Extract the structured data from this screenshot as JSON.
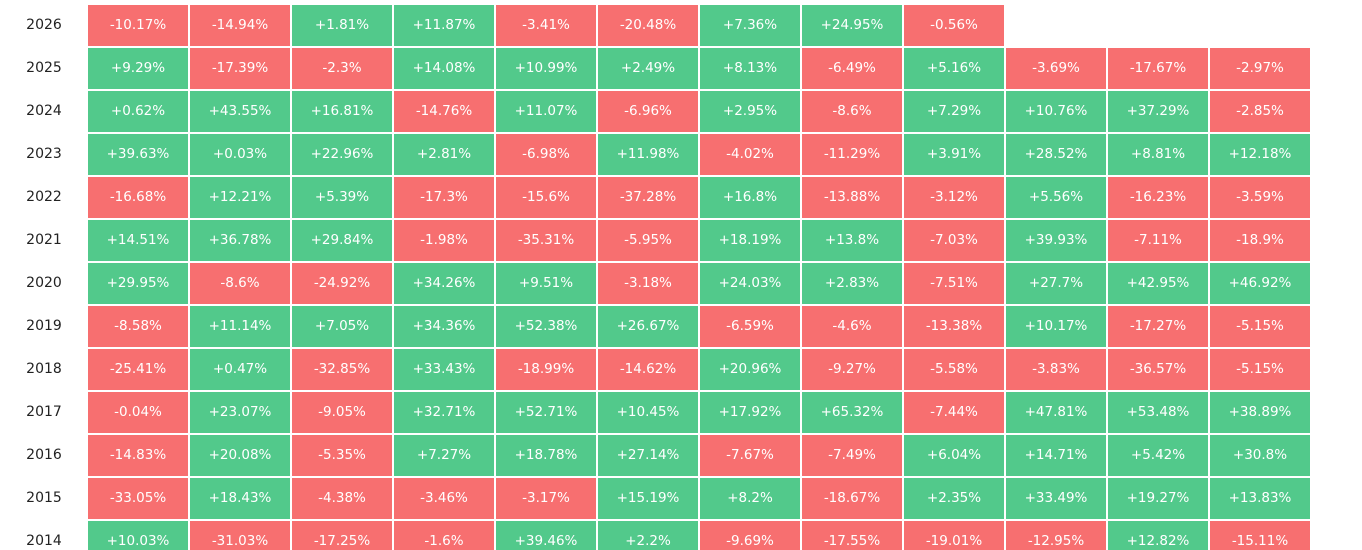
{
  "table": {
    "rows": [
      {
        "year": "2026",
        "cells": [
          "-10.17%",
          "-14.94%",
          "+1.81%",
          "+11.87%",
          "-3.41%",
          "-20.48%",
          "+7.36%",
          "+24.95%",
          "-0.56%"
        ]
      },
      {
        "year": "2025",
        "cells": [
          "+9.29%",
          "-17.39%",
          "-2.3%",
          "+14.08%",
          "+10.99%",
          "+2.49%",
          "+8.13%",
          "-6.49%",
          "+5.16%",
          "-3.69%",
          "-17.67%",
          "-2.97%"
        ]
      },
      {
        "year": "2024",
        "cells": [
          "+0.62%",
          "+43.55%",
          "+16.81%",
          "-14.76%",
          "+11.07%",
          "-6.96%",
          "+2.95%",
          "-8.6%",
          "+7.29%",
          "+10.76%",
          "+37.29%",
          "-2.85%"
        ]
      },
      {
        "year": "2023",
        "cells": [
          "+39.63%",
          "+0.03%",
          "+22.96%",
          "+2.81%",
          "-6.98%",
          "+11.98%",
          "-4.02%",
          "-11.29%",
          "+3.91%",
          "+28.52%",
          "+8.81%",
          "+12.18%"
        ]
      },
      {
        "year": "2022",
        "cells": [
          "-16.68%",
          "+12.21%",
          "+5.39%",
          "-17.3%",
          "-15.6%",
          "-37.28%",
          "+16.8%",
          "-13.88%",
          "-3.12%",
          "+5.56%",
          "-16.23%",
          "-3.59%"
        ]
      },
      {
        "year": "2021",
        "cells": [
          "+14.51%",
          "+36.78%",
          "+29.84%",
          "-1.98%",
          "-35.31%",
          "-5.95%",
          "+18.19%",
          "+13.8%",
          "-7.03%",
          "+39.93%",
          "-7.11%",
          "-18.9%"
        ]
      },
      {
        "year": "2020",
        "cells": [
          "+29.95%",
          "-8.6%",
          "-24.92%",
          "+34.26%",
          "+9.51%",
          "-3.18%",
          "+24.03%",
          "+2.83%",
          "-7.51%",
          "+27.7%",
          "+42.95%",
          "+46.92%"
        ]
      },
      {
        "year": "2019",
        "cells": [
          "-8.58%",
          "+11.14%",
          "+7.05%",
          "+34.36%",
          "+52.38%",
          "+26.67%",
          "-6.59%",
          "-4.6%",
          "-13.38%",
          "+10.17%",
          "-17.27%",
          "-5.15%"
        ]
      },
      {
        "year": "2018",
        "cells": [
          "-25.41%",
          "+0.47%",
          "-32.85%",
          "+33.43%",
          "-18.99%",
          "-14.62%",
          "+20.96%",
          "-9.27%",
          "-5.58%",
          "-3.83%",
          "-36.57%",
          "-5.15%"
        ]
      },
      {
        "year": "2017",
        "cells": [
          "-0.04%",
          "+23.07%",
          "-9.05%",
          "+32.71%",
          "+52.71%",
          "+10.45%",
          "+17.92%",
          "+65.32%",
          "-7.44%",
          "+47.81%",
          "+53.48%",
          "+38.89%"
        ]
      },
      {
        "year": "2016",
        "cells": [
          "-14.83%",
          "+20.08%",
          "-5.35%",
          "+7.27%",
          "+18.78%",
          "+27.14%",
          "-7.67%",
          "-7.49%",
          "+6.04%",
          "+14.71%",
          "+5.42%",
          "+30.8%"
        ]
      },
      {
        "year": "2015",
        "cells": [
          "-33.05%",
          "+18.43%",
          "-4.38%",
          "-3.46%",
          "-3.17%",
          "+15.19%",
          "+8.2%",
          "-18.67%",
          "+2.35%",
          "+33.49%",
          "+19.27%",
          "+13.83%"
        ]
      },
      {
        "year": "2014",
        "cells": [
          "+10.03%",
          "-31.03%",
          "-17.25%",
          "-1.6%",
          "+39.46%",
          "+2.2%",
          "-9.69%",
          "-17.55%",
          "-19.01%",
          "-12.95%",
          "+12.82%",
          "-15.11%"
        ]
      }
    ]
  },
  "positive_color": "#52c98b",
  "negative_color": "#f76f70"
}
